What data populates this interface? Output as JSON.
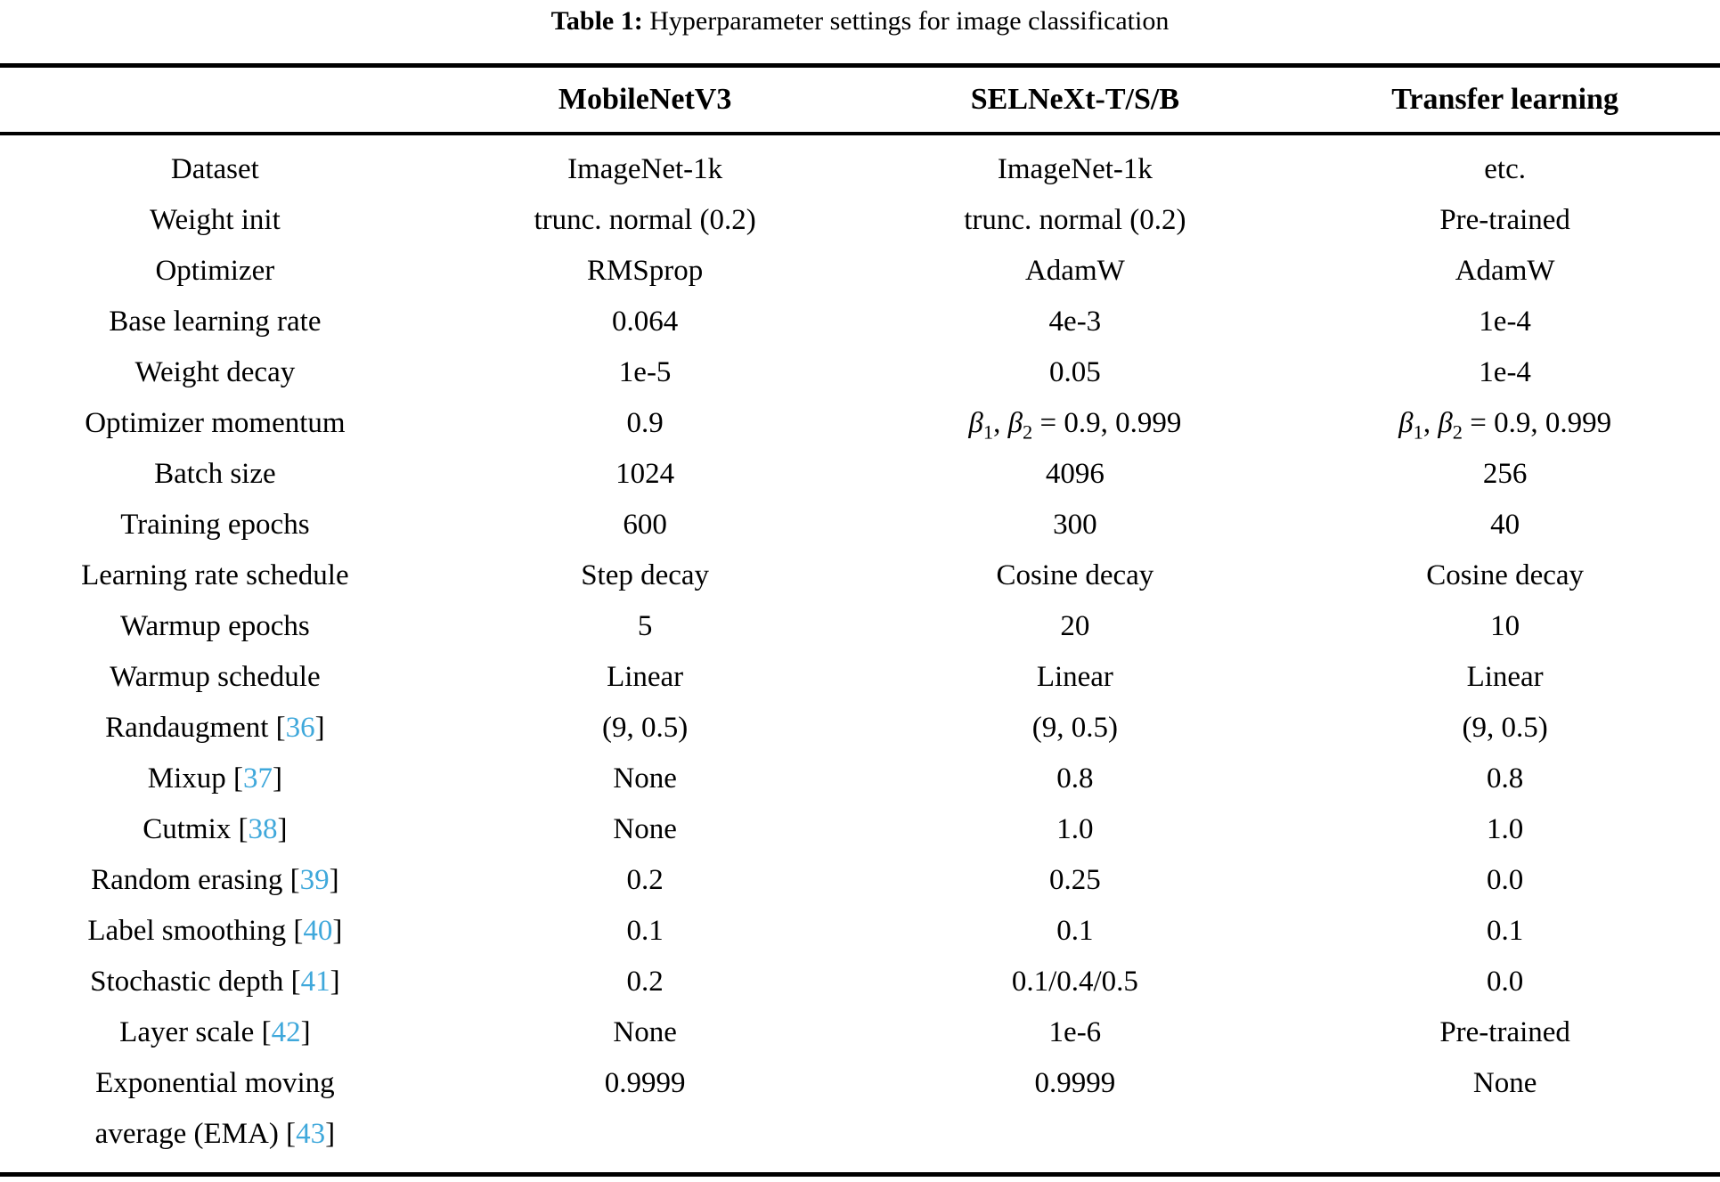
{
  "caption": {
    "label": "Table 1:",
    "text": " Hyperparameter settings for image classification"
  },
  "accent_color": "#3FA8DB",
  "table": {
    "columns": [
      "",
      "MobileNetV3",
      "SELNeXt-T/S/B",
      "Transfer learning"
    ],
    "rows": [
      {
        "label": "Dataset",
        "values": [
          "ImageNet-1k",
          "ImageNet-1k",
          "etc."
        ]
      },
      {
        "label": "Weight init",
        "values": [
          "trunc. normal (0.2)",
          "trunc. normal (0.2)",
          "Pre-trained"
        ]
      },
      {
        "label": "Optimizer",
        "values": [
          "RMSprop",
          "AdamW",
          "AdamW"
        ]
      },
      {
        "label": "Base learning rate",
        "values": [
          "0.064",
          "4e-3",
          "1e-4"
        ]
      },
      {
        "label": "Weight decay",
        "values": [
          "1e-5",
          "0.05",
          "1e-4"
        ]
      },
      {
        "label": "Optimizer momentum",
        "values": [
          "0.9",
          "β1, β2 = 0.9, 0.999",
          "β1, β2 = 0.9, 0.999"
        ]
      },
      {
        "label": "Batch size",
        "values": [
          "1024",
          "4096",
          "256"
        ]
      },
      {
        "label": "Training epochs",
        "values": [
          "600",
          "300",
          "40"
        ]
      },
      {
        "label": "Learning rate schedule",
        "values": [
          "Step decay",
          "Cosine decay",
          "Cosine decay"
        ]
      },
      {
        "label": "Warmup epochs",
        "values": [
          "5",
          "20",
          "10"
        ]
      },
      {
        "label": "Warmup schedule",
        "values": [
          "Linear",
          "Linear",
          "Linear"
        ]
      },
      {
        "label": "Randaugment",
        "cite": "36",
        "values": [
          "(9, 0.5)",
          "(9, 0.5)",
          "(9, 0.5)"
        ]
      },
      {
        "label": "Mixup",
        "cite": "37",
        "values": [
          "None",
          "0.8",
          "0.8"
        ]
      },
      {
        "label": "Cutmix",
        "cite": "38",
        "values": [
          "None",
          "1.0",
          "1.0"
        ]
      },
      {
        "label": "Random erasing",
        "cite": "39",
        "values": [
          "0.2",
          "0.25",
          "0.0"
        ]
      },
      {
        "label": "Label smoothing",
        "cite": "40",
        "values": [
          "0.1",
          "0.1",
          "0.1"
        ]
      },
      {
        "label": "Stochastic depth",
        "cite": "41",
        "values": [
          "0.2",
          "0.1/0.4/0.5",
          "0.0"
        ]
      },
      {
        "label": "Layer scale",
        "cite": "42",
        "values": [
          "None",
          "1e-6",
          "Pre-trained"
        ]
      },
      {
        "label": "Exponential moving\naverage (EMA)",
        "cite": "43",
        "values": [
          "0.9999",
          "0.9999",
          "None"
        ]
      }
    ]
  }
}
